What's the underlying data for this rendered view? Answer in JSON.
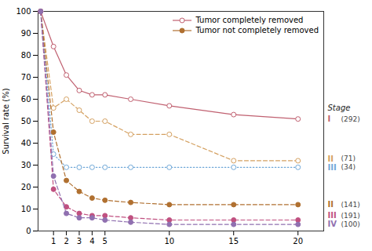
{
  "chart_data": {
    "type": "line",
    "ylabel": "Survival rate (%)",
    "x": [
      0,
      1,
      2,
      3,
      4,
      5,
      7,
      10,
      15,
      20
    ],
    "xlim": [
      -0.2,
      22
    ],
    "xticks": [
      1,
      2,
      3,
      4,
      5,
      10,
      15,
      20
    ],
    "ylim": [
      0,
      100
    ],
    "yticks": [
      0,
      10,
      20,
      30,
      40,
      50,
      60,
      70,
      80,
      90,
      100
    ],
    "grid": false,
    "legend": "upper right",
    "legend_entries": [
      {
        "name": "Tumor completely removed",
        "color": "#c06070",
        "marker": "open_circle"
      },
      {
        "name": "Tumor not completely removed",
        "color": "#b07030",
        "marker": "circle"
      }
    ],
    "stage_heading": "Stage",
    "series": [
      {
        "name": "I",
        "n_label": "(292)",
        "color": "#c06070",
        "line_style": "solid",
        "marker": "open_circle",
        "values": [
          100,
          84,
          71,
          64,
          62,
          62,
          60,
          57,
          53,
          51
        ]
      },
      {
        "name": "II",
        "n_label": "(71)",
        "color": "#d4a060",
        "line_style": "dashed",
        "marker": "open_circle",
        "values": [
          100,
          56,
          60,
          55,
          50,
          50,
          44,
          44,
          32,
          32
        ]
      },
      {
        "name": "III",
        "n_label": "(34)",
        "color": "#70a8d8",
        "line_style": "dotted",
        "marker": "open_circle",
        "values": [
          100,
          35,
          29,
          29,
          29,
          29,
          29,
          29,
          29,
          29
        ]
      },
      {
        "name": "II",
        "n_label": "(141)",
        "color": "#b07030",
        "line_style": "dashed",
        "marker": "circle",
        "values": [
          100,
          45,
          23,
          18,
          15,
          14,
          13,
          12,
          12,
          12
        ]
      },
      {
        "name": "III",
        "n_label": "(191)",
        "color": "#c05080",
        "line_style": "dashed",
        "marker": "circle",
        "values": [
          100,
          19,
          11,
          8,
          7,
          7,
          6,
          5,
          5,
          5
        ]
      },
      {
        "name": "IV",
        "n_label": "(100)",
        "color": "#9070b0",
        "line_style": "dashed",
        "marker": "circle",
        "values": [
          100,
          25,
          8,
          6,
          6,
          5,
          4,
          3,
          3,
          3
        ]
      }
    ]
  }
}
